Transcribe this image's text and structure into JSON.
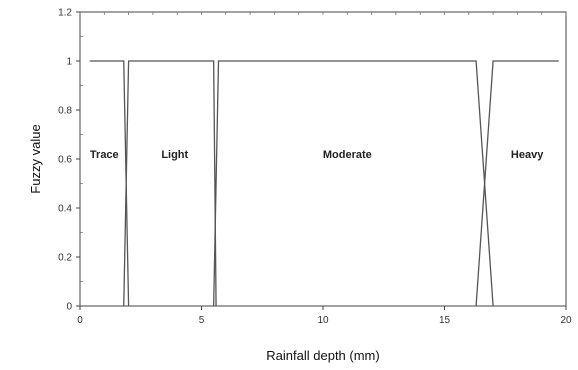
{
  "chart_data": {
    "type": "line",
    "xlabel": "Rainfall depth (mm)",
    "ylabel": "Fuzzy value",
    "xlim": [
      0,
      20
    ],
    "ylim": [
      0,
      1.2
    ],
    "x_ticks": [
      0,
      5,
      10,
      15,
      20
    ],
    "y_ticks": [
      0,
      0.2,
      0.4,
      0.6,
      0.8,
      1,
      1.2
    ],
    "grid": false,
    "legend": "none",
    "line_color": "#555555",
    "series": [
      {
        "label": "Trace",
        "label_x": 1.0,
        "points": [
          [
            0.4,
            1
          ],
          [
            1.8,
            1
          ],
          [
            2.0,
            0
          ]
        ]
      },
      {
        "label": "Light",
        "label_x": 3.9,
        "points": [
          [
            1.8,
            0
          ],
          [
            2.0,
            1
          ],
          [
            5.5,
            1
          ],
          [
            5.6,
            0
          ]
        ]
      },
      {
        "label": "Moderate",
        "label_x": 11.0,
        "points": [
          [
            5.5,
            0
          ],
          [
            5.7,
            1
          ],
          [
            16.3,
            1
          ],
          [
            17.0,
            0
          ]
        ]
      },
      {
        "label": "Heavy",
        "label_x": 18.4,
        "points": [
          [
            16.3,
            0
          ],
          [
            17.0,
            1
          ],
          [
            19.7,
            1
          ]
        ]
      }
    ],
    "label_y": 0.62
  }
}
